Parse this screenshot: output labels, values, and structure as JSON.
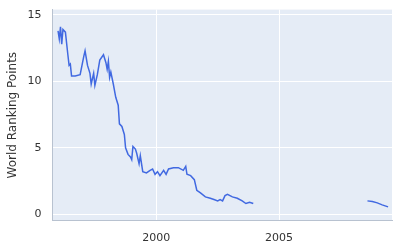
{
  "chart_data": {
    "type": "line",
    "y_label": "World Ranking Points",
    "color": "#4169e1",
    "grid": true,
    "x": [
      1996.0,
      1996.05,
      1996.1,
      1996.15,
      1996.2,
      1996.3,
      1996.4,
      1996.45,
      1996.5,
      1996.55,
      1996.7,
      1996.9,
      1997.05,
      1997.1,
      1997.2,
      1997.3,
      1997.35,
      1997.45,
      1997.5,
      1997.6,
      1997.7,
      1997.85,
      1997.95,
      1998.0,
      1998.05,
      1998.1,
      1998.15,
      1998.25,
      1998.35,
      1998.45,
      1998.5,
      1998.6,
      1998.7,
      1998.75,
      1998.85,
      1998.95,
      1999.0,
      1999.05,
      1999.15,
      1999.2,
      1999.3,
      1999.35,
      1999.45,
      1999.6,
      1999.75,
      1999.85,
      1999.95,
      2000.05,
      2000.15,
      2000.3,
      2000.4,
      2000.5,
      2000.7,
      2000.9,
      2001.1,
      2001.2,
      2001.25,
      2001.4,
      2001.55,
      2001.65,
      2001.8,
      2002.0,
      2002.2,
      2002.35,
      2002.5,
      2002.6,
      2002.7,
      2002.8,
      2002.9,
      2003.1,
      2003.3,
      2003.5,
      2003.65,
      2003.8,
      2003.95,
      2006.0,
      2008.6,
      2008.8,
      2009.0,
      2009.2,
      2009.44
    ],
    "values": [
      13.8,
      13.2,
      14.1,
      12.8,
      13.9,
      13.7,
      12.0,
      11.2,
      11.3,
      10.4,
      10.4,
      10.5,
      11.9,
      12.3,
      11.2,
      10.6,
      9.8,
      10.6,
      9.7,
      10.5,
      11.6,
      12.0,
      11.4,
      10.9,
      11.5,
      10.3,
      10.7,
      9.8,
      8.8,
      8.2,
      6.8,
      6.6,
      6.0,
      5.0,
      4.5,
      4.3,
      4.1,
      5.1,
      4.9,
      4.6,
      3.8,
      4.4,
      3.2,
      3.1,
      3.3,
      3.4,
      3.0,
      3.2,
      2.9,
      3.3,
      3.0,
      3.4,
      3.5,
      3.5,
      3.3,
      3.6,
      3.0,
      2.9,
      2.6,
      1.8,
      1.6,
      1.3,
      1.2,
      1.1,
      1.0,
      1.1,
      1.0,
      1.4,
      1.5,
      1.3,
      1.2,
      1.0,
      0.8,
      0.9,
      0.8,
      null,
      1.0,
      0.95,
      0.85,
      0.7,
      0.55
    ],
    "xlim": [
      1995.77,
      2009.6
    ],
    "xticks": [
      2000,
      2005
    ],
    "ylim": [
      -0.5,
      15.4
    ],
    "yticks": [
      0,
      5,
      10,
      15
    ]
  }
}
